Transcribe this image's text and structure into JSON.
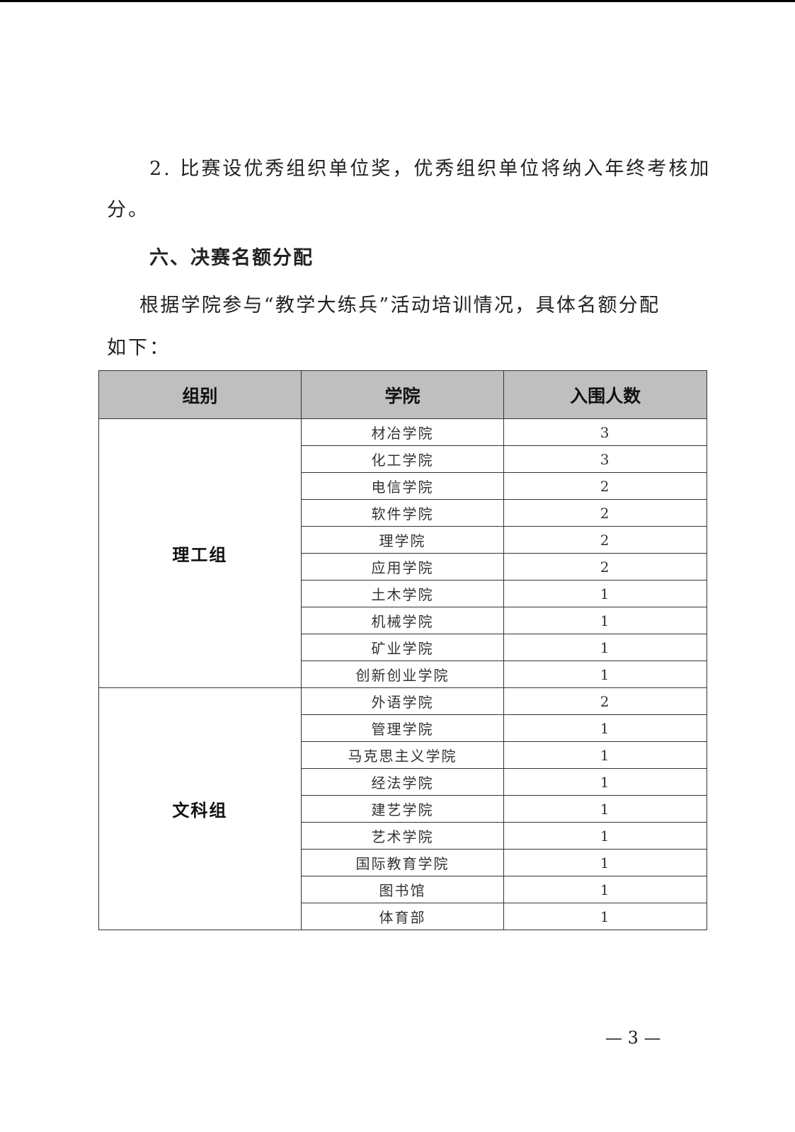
{
  "paragraph1_line1": "2. 比赛设优秀组织单位奖，优秀组织单位将纳入年终考核加",
  "paragraph1_line2": "分。",
  "heading": "六、决赛名额分配",
  "paragraph2_line1": "根据学院参与“教学大练兵”活动培训情况，具体名额分配",
  "paragraph2_line2": "如下：",
  "table": {
    "headers": [
      "组别",
      "学院",
      "入围人数"
    ],
    "groups": [
      {
        "name": "理工组",
        "rows": [
          [
            "材冶学院",
            "3"
          ],
          [
            "化工学院",
            "3"
          ],
          [
            "电信学院",
            "2"
          ],
          [
            "软件学院",
            "2"
          ],
          [
            "理学院",
            "2"
          ],
          [
            "应用学院",
            "2"
          ],
          [
            "土木学院",
            "1"
          ],
          [
            "机械学院",
            "1"
          ],
          [
            "矿业学院",
            "1"
          ],
          [
            "创新创业学院",
            "1"
          ]
        ]
      },
      {
        "name": "文科组",
        "rows": [
          [
            "外语学院",
            "2"
          ],
          [
            "管理学院",
            "1"
          ],
          [
            "马克思主义学院",
            "1"
          ],
          [
            "经法学院",
            "1"
          ],
          [
            "建艺学院",
            "1"
          ],
          [
            "艺术学院",
            "1"
          ],
          [
            "国际教育学院",
            "1"
          ],
          [
            "图书馆",
            "1"
          ],
          [
            "体育部",
            "1"
          ]
        ]
      }
    ]
  },
  "page_number": "— 3 —"
}
